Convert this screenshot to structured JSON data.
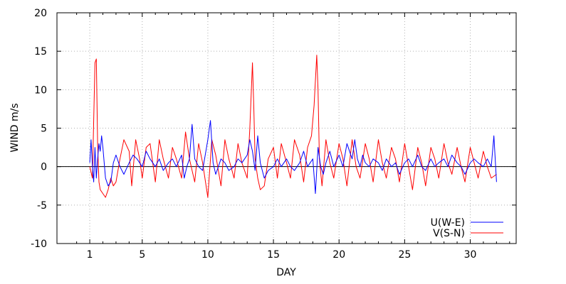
{
  "chart_data": {
    "type": "line",
    "xlabel": "DAY",
    "ylabel": "WIND m/s",
    "xlim": [
      -1.5,
      33.5
    ],
    "ylim": [
      -10,
      20
    ],
    "x_ticks": [
      1,
      5,
      10,
      15,
      20,
      25,
      30
    ],
    "y_ticks": [
      -10,
      -5,
      0,
      5,
      10,
      15,
      20
    ],
    "grid": true,
    "legend_position": "bottom-right",
    "zero_line": true,
    "series": [
      {
        "name": "U(W-E)",
        "color": "#0000ff",
        "x": [
          1.0,
          1.1,
          1.2,
          1.3,
          1.4,
          1.5,
          1.6,
          1.7,
          1.8,
          1.9,
          2.0,
          2.2,
          2.4,
          2.6,
          2.8,
          3.0,
          3.3,
          3.6,
          4.0,
          4.3,
          4.6,
          5.0,
          5.3,
          5.6,
          6.0,
          6.3,
          6.6,
          7.0,
          7.3,
          7.6,
          8.0,
          8.2,
          8.4,
          8.6,
          8.8,
          9.0,
          9.3,
          9.6,
          10.0,
          10.2,
          10.4,
          10.6,
          10.8,
          11.0,
          11.3,
          11.6,
          12.0,
          12.3,
          12.6,
          13.0,
          13.2,
          13.4,
          13.6,
          13.8,
          14.0,
          14.3,
          14.6,
          15.0,
          15.3,
          15.6,
          16.0,
          16.3,
          16.6,
          17.0,
          17.3,
          17.6,
          18.0,
          18.2,
          18.4,
          18.6,
          18.8,
          19.0,
          19.3,
          19.6,
          20.0,
          20.3,
          20.6,
          21.0,
          21.2,
          21.4,
          21.6,
          21.8,
          22.0,
          22.3,
          22.6,
          23.0,
          23.3,
          23.6,
          24.0,
          24.3,
          24.6,
          25.0,
          25.3,
          25.6,
          26.0,
          26.3,
          26.6,
          27.0,
          27.3,
          27.6,
          28.0,
          28.3,
          28.6,
          29.0,
          29.3,
          29.6,
          30.0,
          30.3,
          30.6,
          31.0,
          31.3,
          31.6,
          31.8,
          32.0
        ],
        "values": [
          0.5,
          3.5,
          0.0,
          -2.0,
          2.5,
          -1.5,
          1.0,
          3.0,
          2.0,
          4.0,
          2.5,
          -1.5,
          -2.5,
          -2.0,
          0.5,
          1.5,
          0.0,
          -1.0,
          0.5,
          1.5,
          1.0,
          0.0,
          2.0,
          1.0,
          0.0,
          1.0,
          -0.5,
          0.5,
          1.0,
          0.0,
          1.5,
          -1.5,
          0.0,
          1.0,
          5.5,
          1.0,
          0.0,
          -0.5,
          3.5,
          6.0,
          0.5,
          -1.0,
          0.0,
          1.0,
          0.5,
          -0.5,
          0.0,
          1.0,
          0.5,
          1.5,
          3.5,
          2.0,
          -0.5,
          4.0,
          0.5,
          -1.5,
          -0.5,
          0.0,
          1.0,
          0.0,
          1.0,
          0.0,
          -0.5,
          0.5,
          2.0,
          0.0,
          1.0,
          -3.5,
          2.5,
          0.0,
          -1.0,
          0.5,
          2.0,
          0.0,
          1.5,
          0.0,
          3.0,
          1.0,
          3.5,
          1.0,
          0.0,
          1.5,
          0.5,
          0.0,
          1.0,
          0.5,
          -0.5,
          1.0,
          0.0,
          0.5,
          -1.0,
          0.5,
          1.0,
          0.0,
          1.5,
          0.0,
          -0.5,
          1.0,
          0.0,
          0.5,
          1.0,
          0.0,
          1.5,
          0.5,
          0.0,
          -1.0,
          0.5,
          1.0,
          0.5,
          0.0,
          1.0,
          0.0,
          4.0,
          -2.0
        ]
      },
      {
        "name": "V(S-N)",
        "color": "#ff0000",
        "x": [
          1.0,
          1.2,
          1.4,
          1.5,
          1.6,
          1.7,
          1.8,
          2.0,
          2.2,
          2.4,
          2.6,
          2.8,
          3.0,
          3.3,
          3.6,
          4.0,
          4.2,
          4.5,
          4.8,
          5.0,
          5.3,
          5.6,
          6.0,
          6.3,
          6.6,
          7.0,
          7.3,
          7.6,
          8.0,
          8.3,
          8.6,
          9.0,
          9.3,
          9.6,
          10.0,
          10.3,
          10.6,
          11.0,
          11.3,
          11.6,
          12.0,
          12.3,
          12.6,
          13.0,
          13.2,
          13.4,
          13.5,
          13.6,
          13.8,
          14.0,
          14.3,
          14.6,
          15.0,
          15.3,
          15.6,
          16.0,
          16.3,
          16.6,
          17.0,
          17.3,
          17.6,
          17.9,
          18.1,
          18.3,
          18.4,
          18.5,
          18.7,
          19.0,
          19.3,
          19.6,
          20.0,
          20.3,
          20.6,
          21.0,
          21.3,
          21.6,
          22.0,
          22.3,
          22.6,
          23.0,
          23.3,
          23.6,
          24.0,
          24.3,
          24.6,
          25.0,
          25.3,
          25.6,
          26.0,
          26.3,
          26.6,
          27.0,
          27.3,
          27.6,
          28.0,
          28.3,
          28.6,
          29.0,
          29.3,
          29.6,
          30.0,
          30.3,
          30.6,
          31.0,
          31.3,
          31.6,
          32.0
        ],
        "values": [
          0.0,
          -1.5,
          13.5,
          14.0,
          3.0,
          -2.0,
          -3.0,
          -3.5,
          -4.0,
          -3.0,
          -1.5,
          -2.5,
          -2.0,
          1.0,
          3.5,
          2.0,
          -2.5,
          3.5,
          1.0,
          -1.5,
          2.5,
          3.0,
          -2.0,
          3.5,
          1.0,
          -1.5,
          2.5,
          1.0,
          -1.5,
          4.5,
          1.0,
          -2.0,
          3.0,
          0.5,
          -4.0,
          3.5,
          1.5,
          -2.5,
          3.5,
          1.0,
          -1.5,
          3.0,
          0.5,
          -1.5,
          5.0,
          13.5,
          8.0,
          1.0,
          -1.5,
          -3.0,
          -2.5,
          1.0,
          2.5,
          -1.5,
          3.0,
          0.5,
          -1.5,
          3.5,
          1.5,
          -2.0,
          2.5,
          4.0,
          8.0,
          14.5,
          10.0,
          1.0,
          -2.5,
          3.5,
          0.5,
          -1.5,
          3.0,
          1.0,
          -2.5,
          3.5,
          0.0,
          -1.5,
          3.0,
          1.0,
          -2.0,
          3.5,
          0.5,
          -1.5,
          2.5,
          1.0,
          -2.0,
          3.0,
          0.0,
          -3.0,
          2.5,
          0.5,
          -2.5,
          2.5,
          1.0,
          -1.5,
          3.0,
          0.5,
          -1.0,
          2.5,
          0.0,
          -2.0,
          2.5,
          0.5,
          -1.5,
          2.0,
          0.0,
          -1.5,
          -1.0
        ]
      }
    ]
  }
}
